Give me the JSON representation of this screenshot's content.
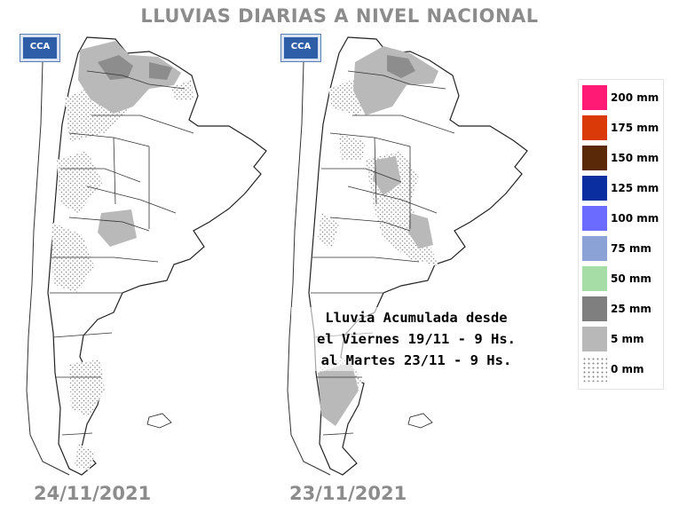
{
  "title": "LLUVIAS DIARIAS A NIVEL NACIONAL",
  "maps": [
    {
      "date": "24/11/2021",
      "logo_text": "CCA"
    },
    {
      "date": "23/11/2021",
      "logo_text": "CCA"
    }
  ],
  "annotation": {
    "line1": "Lluvia Acumulada desde",
    "line2": "el Viernes 19/11 - 9 Hs.",
    "line3": "al Martes 23/11 - 9 Hs."
  },
  "legend": [
    {
      "label": "200 mm",
      "color": "#ff1a75"
    },
    {
      "label": "175 mm",
      "color": "#d93a07"
    },
    {
      "label": "150 mm",
      "color": "#5a2a08"
    },
    {
      "label": "125 mm",
      "color": "#0a2ea0"
    },
    {
      "label": "100 mm",
      "color": "#6b6bff"
    },
    {
      "label": "75 mm",
      "color": "#8aa2d6"
    },
    {
      "label": "50 mm",
      "color": "#a6dca6"
    },
    {
      "label": "25 mm",
      "color": "#7f7f7f"
    },
    {
      "label": "5 mm",
      "color": "#b8b8b8"
    },
    {
      "label": "0 mm",
      "color": "dotted"
    }
  ]
}
